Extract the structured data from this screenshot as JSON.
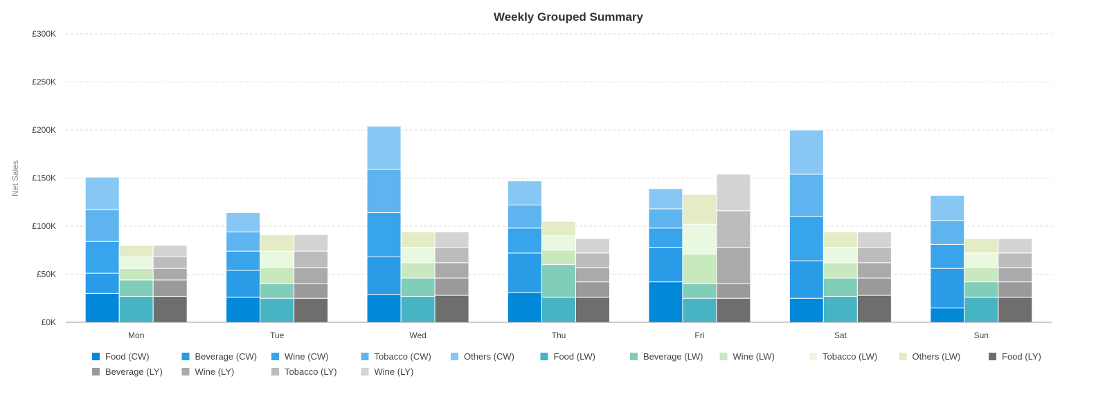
{
  "chart_data": {
    "type": "bar",
    "stacked": true,
    "grouped": true,
    "title": "Weekly Grouped Summary",
    "ylabel": "Net Sales",
    "xlabel": "",
    "ylim": [
      0,
      300000
    ],
    "yticks": [
      0,
      50000,
      100000,
      150000,
      200000,
      250000,
      300000
    ],
    "ytick_labels": [
      "£0K",
      "£50K",
      "£100K",
      "£150K",
      "£200K",
      "£250K",
      "£300K"
    ],
    "grid": true,
    "legend_position": "bottom",
    "categories": [
      "Mon",
      "Tue",
      "Wed",
      "Thu",
      "Fri",
      "Sat",
      "Sun"
    ],
    "stacks": [
      "CW",
      "LW",
      "LY"
    ],
    "series": [
      {
        "name": "Food (CW)",
        "stack": "CW",
        "color": "#0288d9",
        "values": [
          30000,
          26000,
          29000,
          31000,
          42000,
          25000,
          15000
        ]
      },
      {
        "name": "Beverage (CW)",
        "stack": "CW",
        "color": "#2a9be6",
        "values": [
          21000,
          28000,
          39000,
          41000,
          36000,
          39000,
          41000
        ]
      },
      {
        "name": "Wine (CW)",
        "stack": "CW",
        "color": "#38a4ec",
        "values": [
          33000,
          20000,
          46000,
          26000,
          20000,
          46000,
          25000
        ]
      },
      {
        "name": "Tobacco (CW)",
        "stack": "CW",
        "color": "#5db4ee",
        "values": [
          33000,
          20000,
          45000,
          24000,
          20000,
          44000,
          25000
        ]
      },
      {
        "name": "Others (CW)",
        "stack": "CW",
        "color": "#88c7f3",
        "values": [
          34000,
          20000,
          45000,
          25000,
          21000,
          46000,
          26000
        ]
      },
      {
        "name": "Food (LW)",
        "stack": "LW",
        "color": "#47b4c4",
        "values": [
          27000,
          25000,
          27000,
          26000,
          25000,
          27000,
          26000
        ]
      },
      {
        "name": "Beverage (LW)",
        "stack": "LW",
        "color": "#80cdb9",
        "values": [
          17000,
          15000,
          19000,
          34000,
          15000,
          19000,
          16000
        ]
      },
      {
        "name": "Wine (LW)",
        "stack": "LW",
        "color": "#c8e8bd",
        "values": [
          12000,
          17000,
          16000,
          15000,
          31000,
          16000,
          15000
        ]
      },
      {
        "name": "Tobacco (LW)",
        "stack": "LW",
        "color": "#e8f8e1",
        "values": [
          12000,
          17000,
          16000,
          15000,
          31000,
          16000,
          15000
        ]
      },
      {
        "name": "Others (LW)",
        "stack": "LW",
        "color": "#e3ecc5",
        "values": [
          12000,
          17000,
          16000,
          15000,
          31000,
          16000,
          15000
        ]
      },
      {
        "name": "Food (LY)",
        "stack": "LY",
        "color": "#6e6e6e",
        "values": [
          27000,
          25000,
          28000,
          26000,
          25000,
          28000,
          26000
        ]
      },
      {
        "name": "Beverage (LY)",
        "stack": "LY",
        "color": "#9a9a9a",
        "values": [
          17000,
          15000,
          18000,
          16000,
          15000,
          18000,
          16000
        ]
      },
      {
        "name": "Wine (LY)",
        "stack": "LY",
        "color": "#aaaaaa",
        "values": [
          12000,
          17000,
          16000,
          15000,
          38000,
          16000,
          15000
        ]
      },
      {
        "name": "Tobacco (LY)",
        "stack": "LY",
        "color": "#bcbcbc",
        "values": [
          12000,
          17000,
          16000,
          15000,
          38000,
          16000,
          15000
        ]
      },
      {
        "name": "Wine (LY)",
        "stack": "LY",
        "color": "#d3d3d3",
        "values": [
          12000,
          17000,
          16000,
          15000,
          38000,
          16000,
          15000
        ]
      }
    ]
  }
}
